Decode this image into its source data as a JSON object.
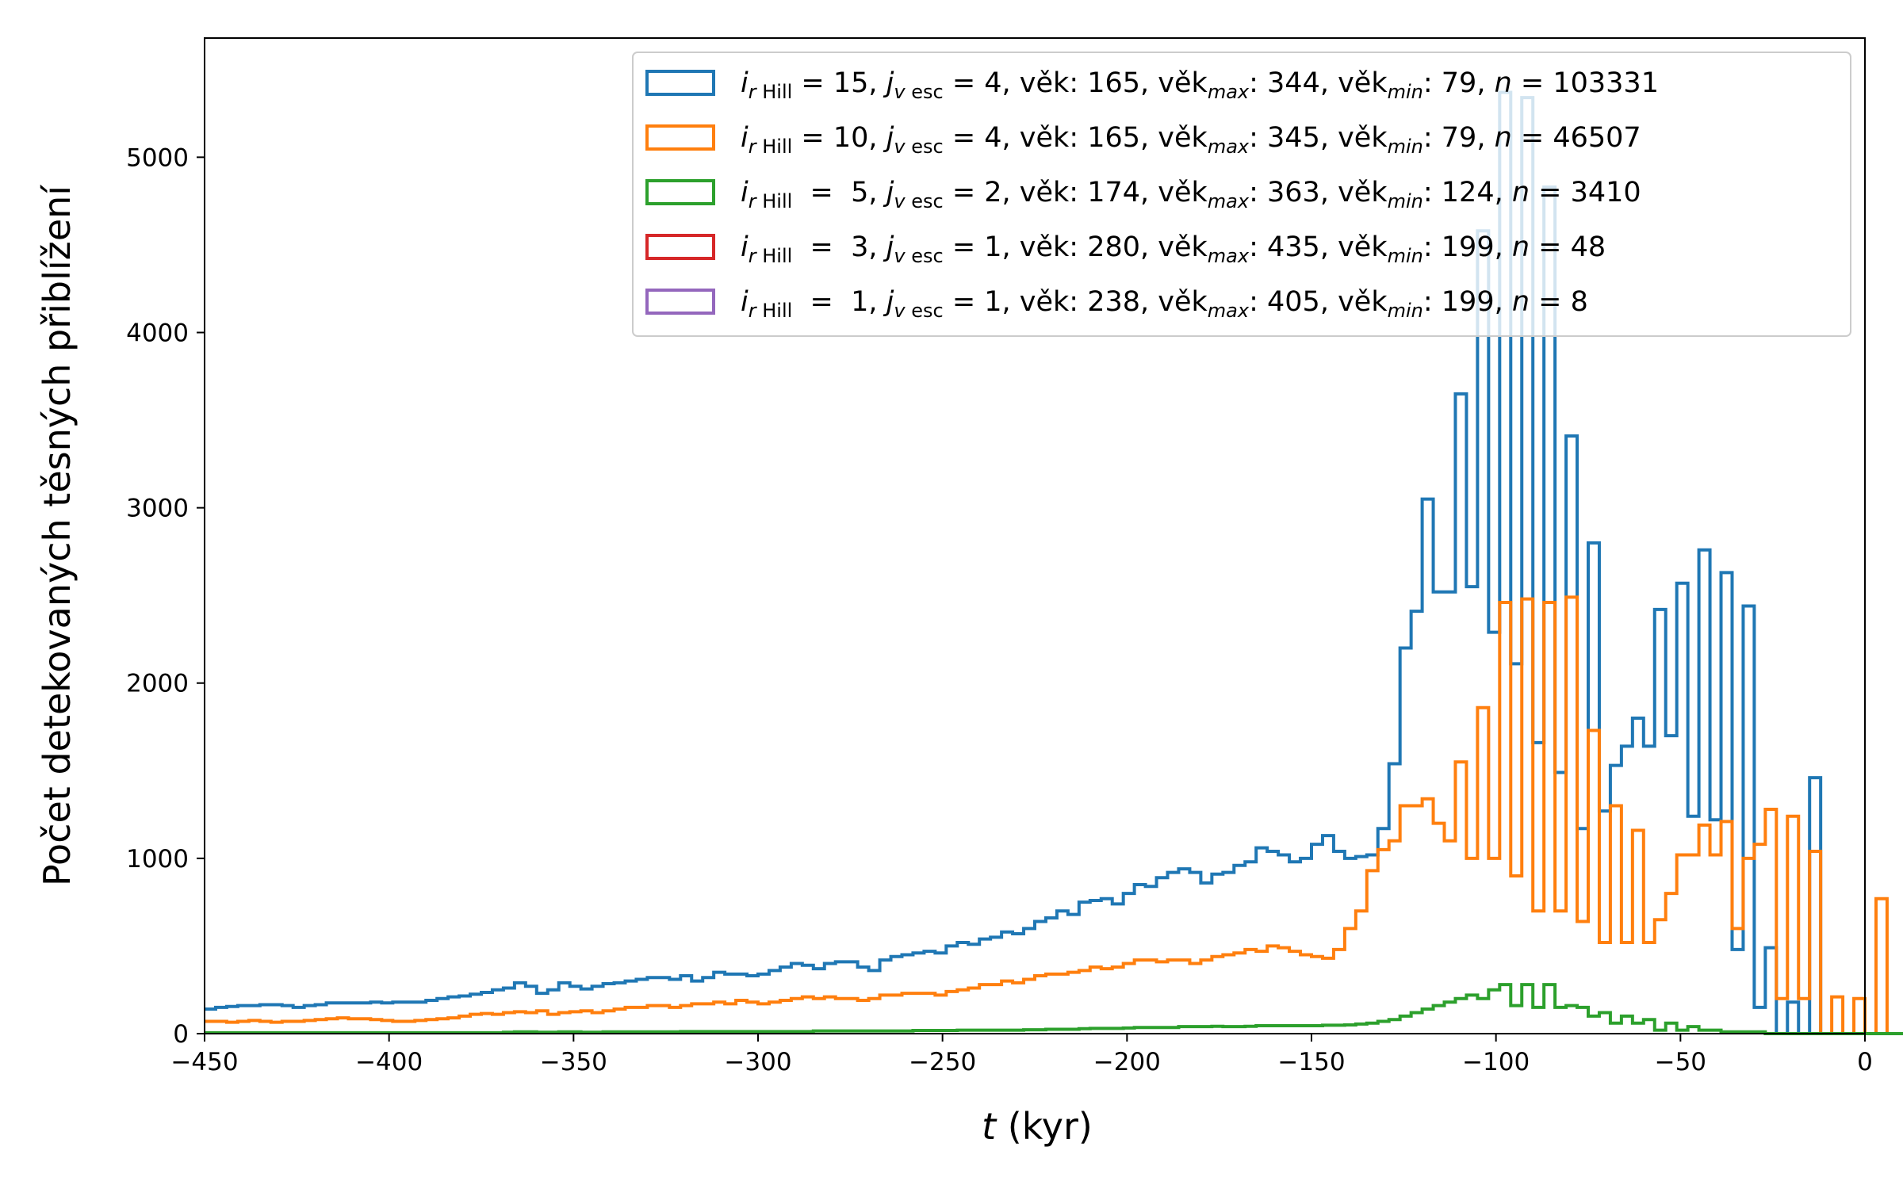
{
  "chart_data": {
    "type": "histogram",
    "xlabel_var": "t",
    "xlabel_unit": " (kyr)",
    "ylabel": "Počet detekovaných těsných přiblížení",
    "xlim": [
      -450,
      0
    ],
    "ylim": [
      0,
      5680
    ],
    "bin_width": 3,
    "bin_start": -450,
    "x_ticks": [
      -450,
      -400,
      -350,
      -300,
      -250,
      -200,
      -150,
      -100,
      -50,
      0
    ],
    "x_tick_labels": [
      "−450",
      "−400",
      "−350",
      "−300",
      "−250",
      "−200",
      "−150",
      "−100",
      "−50",
      "0"
    ],
    "y_ticks": [
      0,
      1000,
      2000,
      3000,
      4000,
      5000
    ],
    "y_tick_labels": [
      "0",
      "1000",
      "2000",
      "3000",
      "4000",
      "5000"
    ],
    "grid": false,
    "legend_position": "top-right",
    "series": [
      {
        "color": "#1f77b4",
        "legend": {
          "i_val": "= 15",
          "j_val": "= 4",
          "vek": ", věk: 165, ",
          "vek_max": ": 344, ",
          "vek_min": ": 79, ",
          "n": " = 103331"
        },
        "values": [
          140,
          150,
          155,
          160,
          160,
          165,
          165,
          160,
          150,
          160,
          165,
          175,
          175,
          175,
          175,
          180,
          175,
          180,
          180,
          180,
          190,
          200,
          210,
          215,
          225,
          235,
          250,
          260,
          290,
          270,
          230,
          250,
          290,
          270,
          255,
          270,
          285,
          290,
          300,
          310,
          320,
          320,
          310,
          330,
          300,
          320,
          350,
          340,
          340,
          330,
          340,
          360,
          380,
          400,
          390,
          370,
          400,
          410,
          410,
          380,
          360,
          420,
          440,
          450,
          460,
          470,
          460,
          500,
          520,
          510,
          540,
          550,
          580,
          570,
          600,
          640,
          660,
          700,
          680,
          750,
          760,
          770,
          740,
          800,
          850,
          840,
          890,
          920,
          940,
          920,
          860,
          910,
          920,
          960,
          980,
          1060,
          1040,
          1020,
          980,
          1000,
          1080,
          1130,
          1040,
          1000,
          1010,
          1020,
          1170,
          1540,
          2200,
          2410,
          3050,
          2520,
          2520,
          3650,
          2550,
          4580,
          2290,
          5370,
          2110,
          5340,
          1660,
          4830,
          1490,
          3410,
          1170,
          2800,
          1270,
          1530,
          1640,
          1800,
          1640,
          2420,
          1700,
          2570,
          1240,
          2760,
          1220,
          2630,
          480,
          2440,
          150,
          490,
          0,
          180,
          0,
          1460,
          0,
          0,
          0,
          0,
          0,
          0,
          0,
          0,
          0,
          0,
          0,
          0,
          0,
          0
        ]
      },
      {
        "color": "#ff7f0e",
        "legend": {
          "i_val": "= 10",
          "j_val": "= 4",
          "vek": ", věk: 165, ",
          "vek_max": ": 345, ",
          "vek_min": ": 79, ",
          "n": " = 46507"
        },
        "values": [
          70,
          70,
          65,
          70,
          75,
          70,
          65,
          70,
          70,
          75,
          80,
          85,
          90,
          85,
          85,
          80,
          75,
          70,
          70,
          75,
          80,
          85,
          90,
          100,
          110,
          115,
          110,
          120,
          125,
          120,
          130,
          110,
          120,
          125,
          130,
          120,
          130,
          140,
          150,
          150,
          160,
          160,
          150,
          160,
          170,
          170,
          180,
          170,
          190,
          180,
          170,
          180,
          190,
          200,
          210,
          200,
          210,
          200,
          200,
          190,
          200,
          220,
          220,
          230,
          230,
          230,
          220,
          240,
          250,
          260,
          280,
          280,
          300,
          290,
          310,
          330,
          340,
          340,
          350,
          360,
          380,
          370,
          380,
          400,
          420,
          420,
          410,
          420,
          420,
          400,
          420,
          440,
          450,
          460,
          480,
          470,
          500,
          490,
          470,
          450,
          440,
          430,
          480,
          600,
          700,
          930,
          1050,
          1100,
          1300,
          1300,
          1340,
          1200,
          1100,
          1550,
          1000,
          1860,
          1000,
          2460,
          900,
          2480,
          700,
          2460,
          700,
          2490,
          640,
          1730,
          520,
          1300,
          520,
          1160,
          520,
          650,
          800,
          1020,
          1020,
          1190,
          1020,
          1210,
          600,
          1000,
          1080,
          1280,
          200,
          1240,
          200,
          1040,
          0,
          210,
          0,
          200,
          0,
          770,
          0,
          0,
          0,
          0,
          0,
          0,
          0,
          0,
          0,
          0,
          0,
          0,
          0,
          0
        ]
      },
      {
        "color": "#2ca02c",
        "legend": {
          "i_val": " =  5",
          "j_val": "= 2",
          "vek": ", věk: 174, ",
          "vek_max": ": 363, ",
          "vek_min": ": 124, ",
          "n": " = 3410"
        },
        "values": [
          5,
          5,
          5,
          5,
          5,
          5,
          5,
          5,
          5,
          5,
          5,
          5,
          5,
          5,
          5,
          5,
          5,
          5,
          5,
          5,
          5,
          5,
          5,
          5,
          5,
          5,
          5,
          8,
          10,
          10,
          8,
          8,
          10,
          10,
          8,
          8,
          10,
          10,
          10,
          10,
          10,
          10,
          10,
          12,
          12,
          12,
          12,
          12,
          12,
          12,
          12,
          12,
          12,
          12,
          12,
          15,
          15,
          15,
          15,
          15,
          15,
          15,
          15,
          15,
          18,
          18,
          18,
          18,
          20,
          20,
          20,
          20,
          20,
          20,
          22,
          22,
          25,
          25,
          25,
          28,
          30,
          30,
          30,
          32,
          35,
          35,
          35,
          35,
          40,
          40,
          40,
          42,
          40,
          40,
          42,
          45,
          45,
          45,
          45,
          45,
          45,
          48,
          48,
          50,
          55,
          60,
          70,
          80,
          100,
          120,
          140,
          160,
          180,
          200,
          220,
          200,
          250,
          280,
          160,
          280,
          150,
          280,
          150,
          160,
          150,
          100,
          120,
          60,
          100,
          60,
          80,
          20,
          60,
          20,
          40,
          20,
          20,
          10,
          10,
          10,
          10,
          0,
          0,
          0,
          0,
          0,
          0,
          0,
          0,
          0,
          0,
          0,
          0,
          0,
          0,
          0,
          0,
          0,
          0,
          0,
          0,
          0,
          0,
          0,
          0,
          0,
          0,
          0
        ]
      },
      {
        "color": "#d62728",
        "legend": {
          "i_val": " =  3",
          "j_val": "= 1",
          "vek": ", věk: 280, ",
          "vek_max": ": 435, ",
          "vek_min": ": 199, ",
          "n": " = 48"
        },
        "values": []
      },
      {
        "color": "#9467bd",
        "legend": {
          "i_val": " =  1",
          "j_val": "= 1",
          "vek": ", věk: 238, ",
          "vek_max": ": 405, ",
          "vek_min": ": 199, ",
          "n": " = 8"
        },
        "values": []
      }
    ],
    "legend_labels": {
      "i": "i",
      "i_sub_r": "r",
      "i_sub_hill": " Hill",
      "j": "j",
      "j_sub_v": "v",
      "j_sub_esc": " esc",
      "vek_sub_max": "max",
      "vek_sub_min": "min",
      "vek_word": "věk",
      "n_sym": "n"
    }
  }
}
